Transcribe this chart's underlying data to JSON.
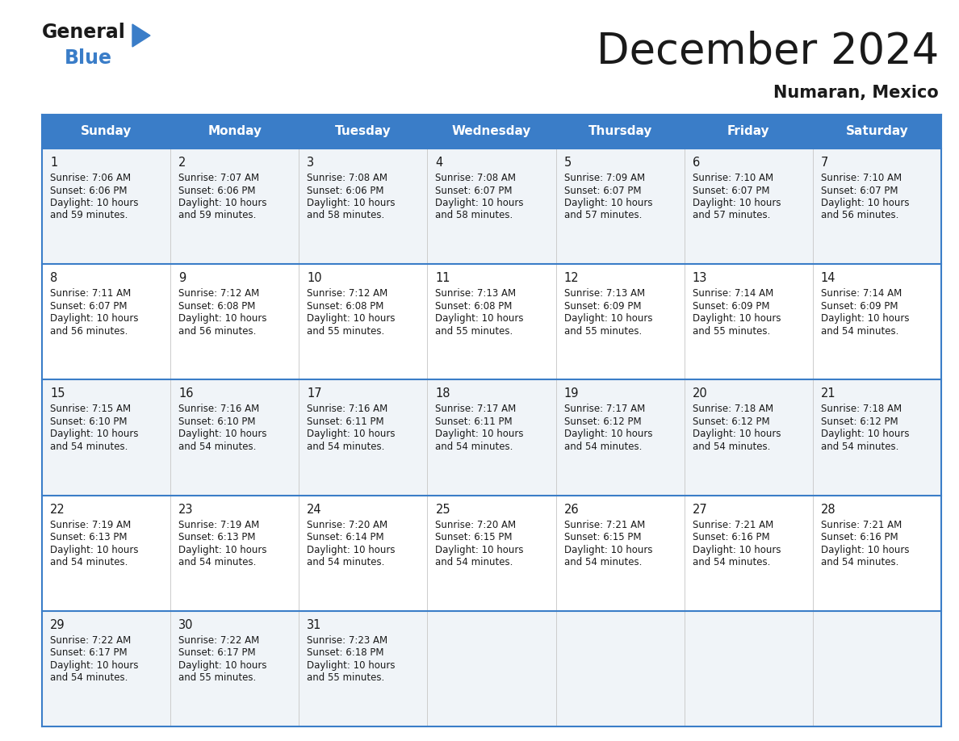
{
  "title": "December 2024",
  "subtitle": "Numaran, Mexico",
  "header_bg": "#3a7dc8",
  "header_text": "#ffffff",
  "days_of_week": [
    "Sunday",
    "Monday",
    "Tuesday",
    "Wednesday",
    "Thursday",
    "Friday",
    "Saturday"
  ],
  "weeks": [
    [
      {
        "day": "1",
        "sunrise": "7:06 AM",
        "sunset": "6:06 PM",
        "daylight": "10 hours",
        "daylight2": "and 59 minutes."
      },
      {
        "day": "2",
        "sunrise": "7:07 AM",
        "sunset": "6:06 PM",
        "daylight": "10 hours",
        "daylight2": "and 59 minutes."
      },
      {
        "day": "3",
        "sunrise": "7:08 AM",
        "sunset": "6:06 PM",
        "daylight": "10 hours",
        "daylight2": "and 58 minutes."
      },
      {
        "day": "4",
        "sunrise": "7:08 AM",
        "sunset": "6:07 PM",
        "daylight": "10 hours",
        "daylight2": "and 58 minutes."
      },
      {
        "day": "5",
        "sunrise": "7:09 AM",
        "sunset": "6:07 PM",
        "daylight": "10 hours",
        "daylight2": "and 57 minutes."
      },
      {
        "day": "6",
        "sunrise": "7:10 AM",
        "sunset": "6:07 PM",
        "daylight": "10 hours",
        "daylight2": "and 57 minutes."
      },
      {
        "day": "7",
        "sunrise": "7:10 AM",
        "sunset": "6:07 PM",
        "daylight": "10 hours",
        "daylight2": "and 56 minutes."
      }
    ],
    [
      {
        "day": "8",
        "sunrise": "7:11 AM",
        "sunset": "6:07 PM",
        "daylight": "10 hours",
        "daylight2": "and 56 minutes."
      },
      {
        "day": "9",
        "sunrise": "7:12 AM",
        "sunset": "6:08 PM",
        "daylight": "10 hours",
        "daylight2": "and 56 minutes."
      },
      {
        "day": "10",
        "sunrise": "7:12 AM",
        "sunset": "6:08 PM",
        "daylight": "10 hours",
        "daylight2": "and 55 minutes."
      },
      {
        "day": "11",
        "sunrise": "7:13 AM",
        "sunset": "6:08 PM",
        "daylight": "10 hours",
        "daylight2": "and 55 minutes."
      },
      {
        "day": "12",
        "sunrise": "7:13 AM",
        "sunset": "6:09 PM",
        "daylight": "10 hours",
        "daylight2": "and 55 minutes."
      },
      {
        "day": "13",
        "sunrise": "7:14 AM",
        "sunset": "6:09 PM",
        "daylight": "10 hours",
        "daylight2": "and 55 minutes."
      },
      {
        "day": "14",
        "sunrise": "7:14 AM",
        "sunset": "6:09 PM",
        "daylight": "10 hours",
        "daylight2": "and 54 minutes."
      }
    ],
    [
      {
        "day": "15",
        "sunrise": "7:15 AM",
        "sunset": "6:10 PM",
        "daylight": "10 hours",
        "daylight2": "and 54 minutes."
      },
      {
        "day": "16",
        "sunrise": "7:16 AM",
        "sunset": "6:10 PM",
        "daylight": "10 hours",
        "daylight2": "and 54 minutes."
      },
      {
        "day": "17",
        "sunrise": "7:16 AM",
        "sunset": "6:11 PM",
        "daylight": "10 hours",
        "daylight2": "and 54 minutes."
      },
      {
        "day": "18",
        "sunrise": "7:17 AM",
        "sunset": "6:11 PM",
        "daylight": "10 hours",
        "daylight2": "and 54 minutes."
      },
      {
        "day": "19",
        "sunrise": "7:17 AM",
        "sunset": "6:12 PM",
        "daylight": "10 hours",
        "daylight2": "and 54 minutes."
      },
      {
        "day": "20",
        "sunrise": "7:18 AM",
        "sunset": "6:12 PM",
        "daylight": "10 hours",
        "daylight2": "and 54 minutes."
      },
      {
        "day": "21",
        "sunrise": "7:18 AM",
        "sunset": "6:12 PM",
        "daylight": "10 hours",
        "daylight2": "and 54 minutes."
      }
    ],
    [
      {
        "day": "22",
        "sunrise": "7:19 AM",
        "sunset": "6:13 PM",
        "daylight": "10 hours",
        "daylight2": "and 54 minutes."
      },
      {
        "day": "23",
        "sunrise": "7:19 AM",
        "sunset": "6:13 PM",
        "daylight": "10 hours",
        "daylight2": "and 54 minutes."
      },
      {
        "day": "24",
        "sunrise": "7:20 AM",
        "sunset": "6:14 PM",
        "daylight": "10 hours",
        "daylight2": "and 54 minutes."
      },
      {
        "day": "25",
        "sunrise": "7:20 AM",
        "sunset": "6:15 PM",
        "daylight": "10 hours",
        "daylight2": "and 54 minutes."
      },
      {
        "day": "26",
        "sunrise": "7:21 AM",
        "sunset": "6:15 PM",
        "daylight": "10 hours",
        "daylight2": "and 54 minutes."
      },
      {
        "day": "27",
        "sunrise": "7:21 AM",
        "sunset": "6:16 PM",
        "daylight": "10 hours",
        "daylight2": "and 54 minutes."
      },
      {
        "day": "28",
        "sunrise": "7:21 AM",
        "sunset": "6:16 PM",
        "daylight": "10 hours",
        "daylight2": "and 54 minutes."
      }
    ],
    [
      {
        "day": "29",
        "sunrise": "7:22 AM",
        "sunset": "6:17 PM",
        "daylight": "10 hours",
        "daylight2": "and 54 minutes."
      },
      {
        "day": "30",
        "sunrise": "7:22 AM",
        "sunset": "6:17 PM",
        "daylight": "10 hours",
        "daylight2": "and 55 minutes."
      },
      {
        "day": "31",
        "sunrise": "7:23 AM",
        "sunset": "6:18 PM",
        "daylight": "10 hours",
        "daylight2": "and 55 minutes."
      },
      null,
      null,
      null,
      null
    ]
  ],
  "logo_color1": "#1a1a1a",
  "logo_color2": "#3a7dc8",
  "logo_triangle_color": "#3a7dc8",
  "cell_bg": [
    "#f0f4f8",
    "#ffffff"
  ],
  "text_color": "#1a1a1a",
  "separator_color": "#3a7dc8",
  "fig_width": 11.88,
  "fig_height": 9.18
}
